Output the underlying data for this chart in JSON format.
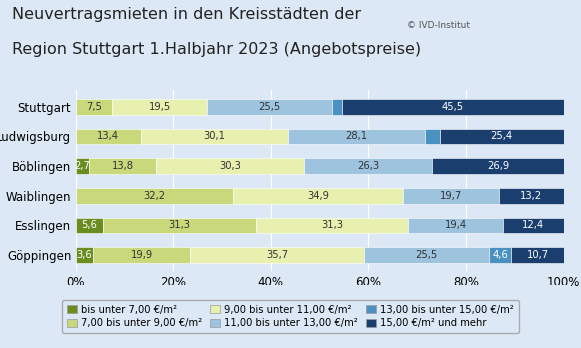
{
  "title_line1": "Neuvertragsmieten in den Kreisstädten der",
  "title_line2": "Region Stuttgart 1.Halbjahr 2023 (Angebotspreise)",
  "copyright": "© IVD-Institut",
  "categories": [
    "Stuttgart",
    "Ludwigsburg",
    "Böblingen",
    "Waiblingen",
    "Esslingen",
    "Göppingen"
  ],
  "series": [
    {
      "label": "bis unter 7,00 €/m²",
      "color": "#6b8c21",
      "values": [
        0.0,
        0.0,
        2.7,
        0.0,
        5.6,
        3.6
      ]
    },
    {
      "label": "7,00 bis unter 9,00 €/m²",
      "color": "#c8d87a",
      "values": [
        7.5,
        13.4,
        13.8,
        32.2,
        31.3,
        19.9
      ]
    },
    {
      "label": "9,00 bis unter 11,00 €/m²",
      "color": "#e8f0b0",
      "values": [
        19.5,
        30.1,
        30.3,
        34.9,
        31.3,
        35.7
      ]
    },
    {
      "label": "11,00 bis unter 13,00 €/m²",
      "color": "#9dc3df",
      "values": [
        25.5,
        28.1,
        26.3,
        19.7,
        19.4,
        25.5
      ]
    },
    {
      "label": "13,00 bis unter 15,00 €/m²",
      "color": "#4a90c0",
      "values": [
        2.0,
        3.0,
        0.0,
        0.0,
        0.0,
        4.6
      ]
    },
    {
      "label": "15,00 €/m² und mehr",
      "color": "#1a3f6f",
      "values": [
        45.5,
        25.4,
        26.9,
        13.2,
        12.4,
        10.7
      ]
    }
  ],
  "label_data": [
    [
      0,
      1,
      "7,5"
    ],
    [
      0,
      2,
      "19,5"
    ],
    [
      0,
      3,
      "25,5"
    ],
    [
      0,
      5,
      "45,5"
    ],
    [
      1,
      1,
      "13,4"
    ],
    [
      1,
      2,
      "30,1"
    ],
    [
      1,
      3,
      "28,1"
    ],
    [
      1,
      5,
      "25,4"
    ],
    [
      2,
      0,
      "2,7"
    ],
    [
      2,
      1,
      "13,8"
    ],
    [
      2,
      2,
      "30,3"
    ],
    [
      2,
      3,
      "26,3"
    ],
    [
      2,
      5,
      "26,9"
    ],
    [
      3,
      1,
      "32,2"
    ],
    [
      3,
      2,
      "34,9"
    ],
    [
      3,
      3,
      "19,7"
    ],
    [
      3,
      5,
      "13,2"
    ],
    [
      4,
      0,
      "5,6"
    ],
    [
      4,
      1,
      "31,3"
    ],
    [
      4,
      2,
      "31,3"
    ],
    [
      4,
      3,
      "19,4"
    ],
    [
      4,
      5,
      "12,4"
    ],
    [
      5,
      0,
      "3,6"
    ],
    [
      5,
      1,
      "19,9"
    ],
    [
      5,
      2,
      "35,7"
    ],
    [
      5,
      3,
      "25,5"
    ],
    [
      5,
      4,
      "4,6"
    ],
    [
      5,
      5,
      "10,7"
    ]
  ],
  "background_color": "#dce8f5",
  "bar_height": 0.52,
  "xlim": [
    0,
    100
  ],
  "xticks": [
    0,
    20,
    40,
    60,
    80,
    100
  ],
  "xticklabels": [
    "0%",
    "20%",
    "40%",
    "60%",
    "80%",
    "100%"
  ],
  "title_fontsize": 11.5,
  "label_fontsize": 7.2,
  "legend_fontsize": 7.2,
  "tick_fontsize": 8.5
}
